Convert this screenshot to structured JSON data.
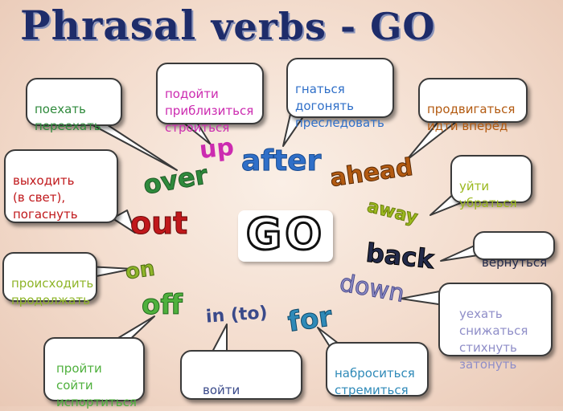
{
  "title": {
    "part1": "Phrasal",
    "part2": "verbs - GO"
  },
  "center_word": "GO",
  "words": {
    "up": "up",
    "after": "after",
    "over": "over",
    "ahead": "ahead",
    "out": "out",
    "away": "away",
    "back": "back",
    "on": "on",
    "down": "down",
    "off": "off",
    "in_to": "in (to)",
    "for": "for"
  },
  "bubbles": {
    "over": "поехать\nпереехать",
    "up": "подойти\nприблизиться\nстроиться",
    "after": "гнаться\nдогонять\nпреследовать",
    "ahead": "продвигаться\nидти вперёд",
    "out": "выходить\n(в свет),\nпогаснуть",
    "away": "уйти\nубраться",
    "back": "вернуться",
    "on": "происходить\nпродолжать",
    "down": "уехать\nснижаться\nстихнуть\nзатонуть",
    "off": "пройти\nсойти\nиспортиться",
    "in_to": "войти",
    "for": "наброситься\nстремиться"
  },
  "colors": {
    "title": "#1e2c6a",
    "over": "#2f8a3c",
    "up": "#cc2bb0",
    "after": "#2f6fc8",
    "ahead": "#b35a10",
    "out": "#c0181b",
    "away": "#9bb81e",
    "back": "#232a4a",
    "on": "#8fb52a",
    "down": "#8f8ec8",
    "off": "#4fb03d",
    "in_to": "#3a4a8a",
    "for": "#2f8ab8"
  }
}
